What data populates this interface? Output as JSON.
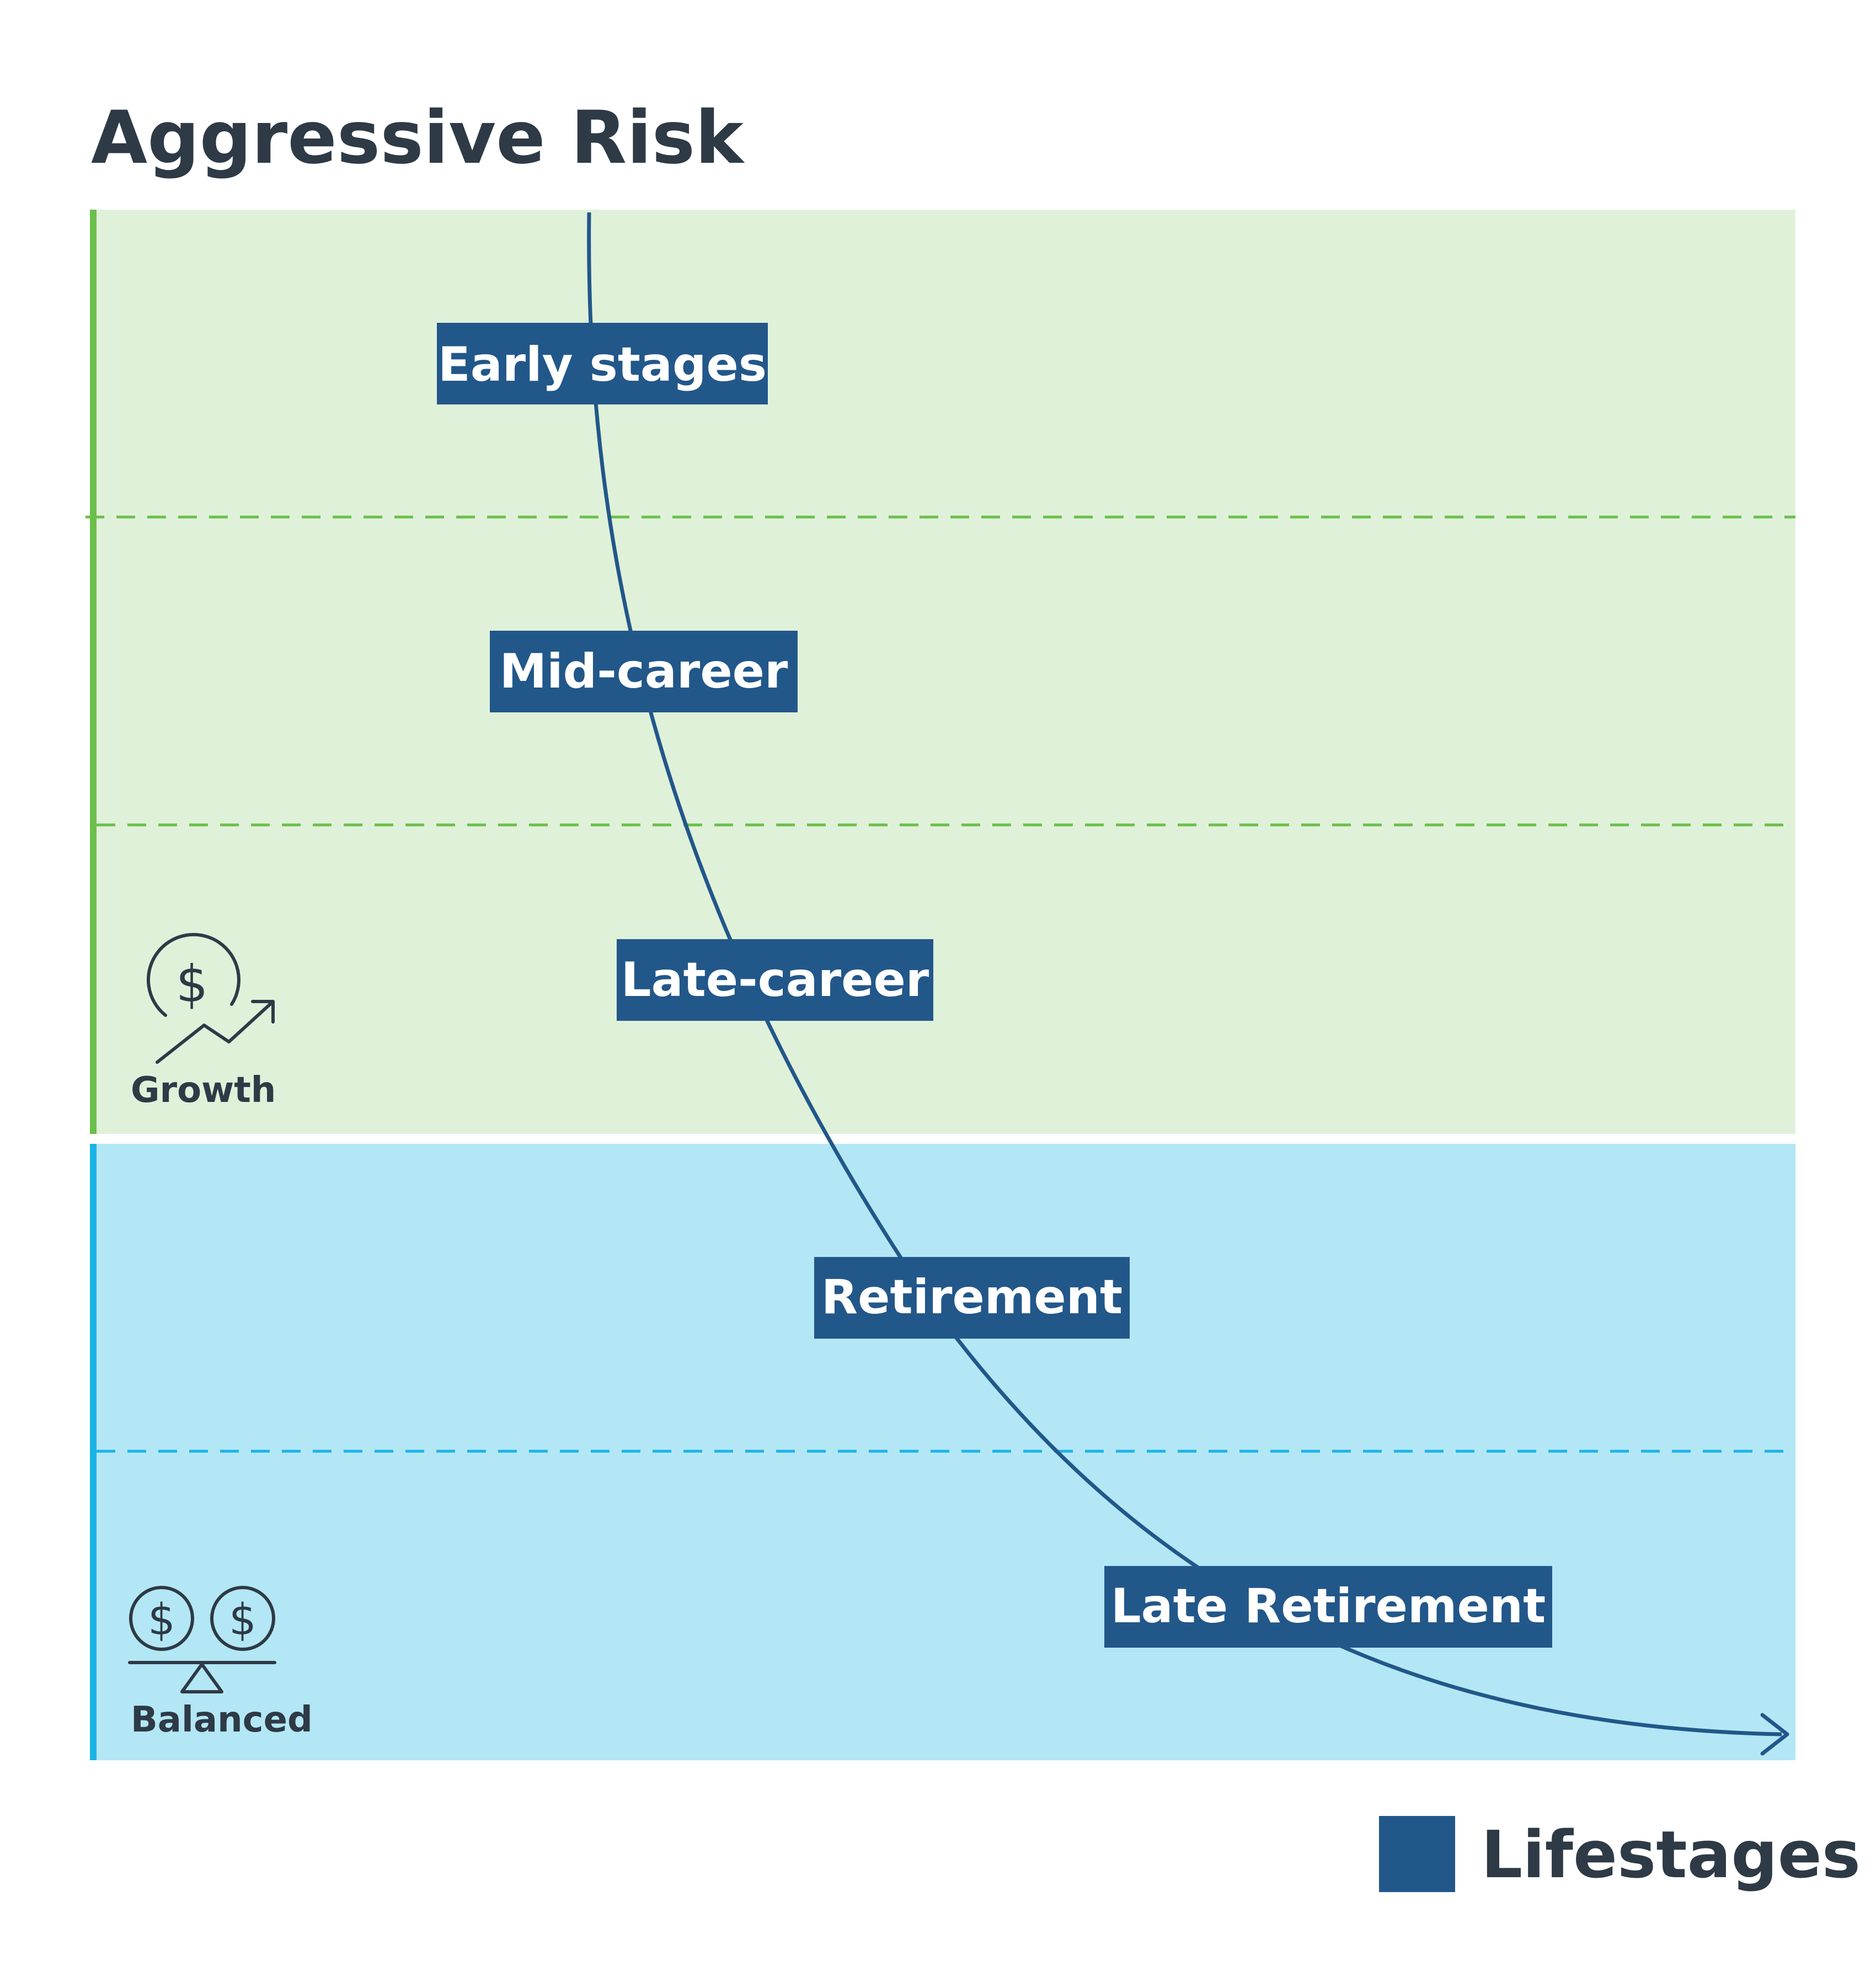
{
  "title": "Aggressive Risk",
  "zones": [
    {
      "label": "Growth",
      "icon": "dollar-growth-icon",
      "fill": "#e0f1da",
      "accent": "#6cbf4a"
    },
    {
      "label": "Balanced",
      "icon": "balanced-scale-icon",
      "fill": "#b3e7f5",
      "accent": "#1ab3e6"
    }
  ],
  "stages": [
    {
      "label": "Early stages"
    },
    {
      "label": "Mid-career"
    },
    {
      "label": "Late-career"
    },
    {
      "label": "Retirement"
    },
    {
      "label": "Late Retirement"
    }
  ],
  "legend": {
    "label": "Lifestages",
    "color": "#22578a"
  },
  "curve_color": "#22578a"
}
